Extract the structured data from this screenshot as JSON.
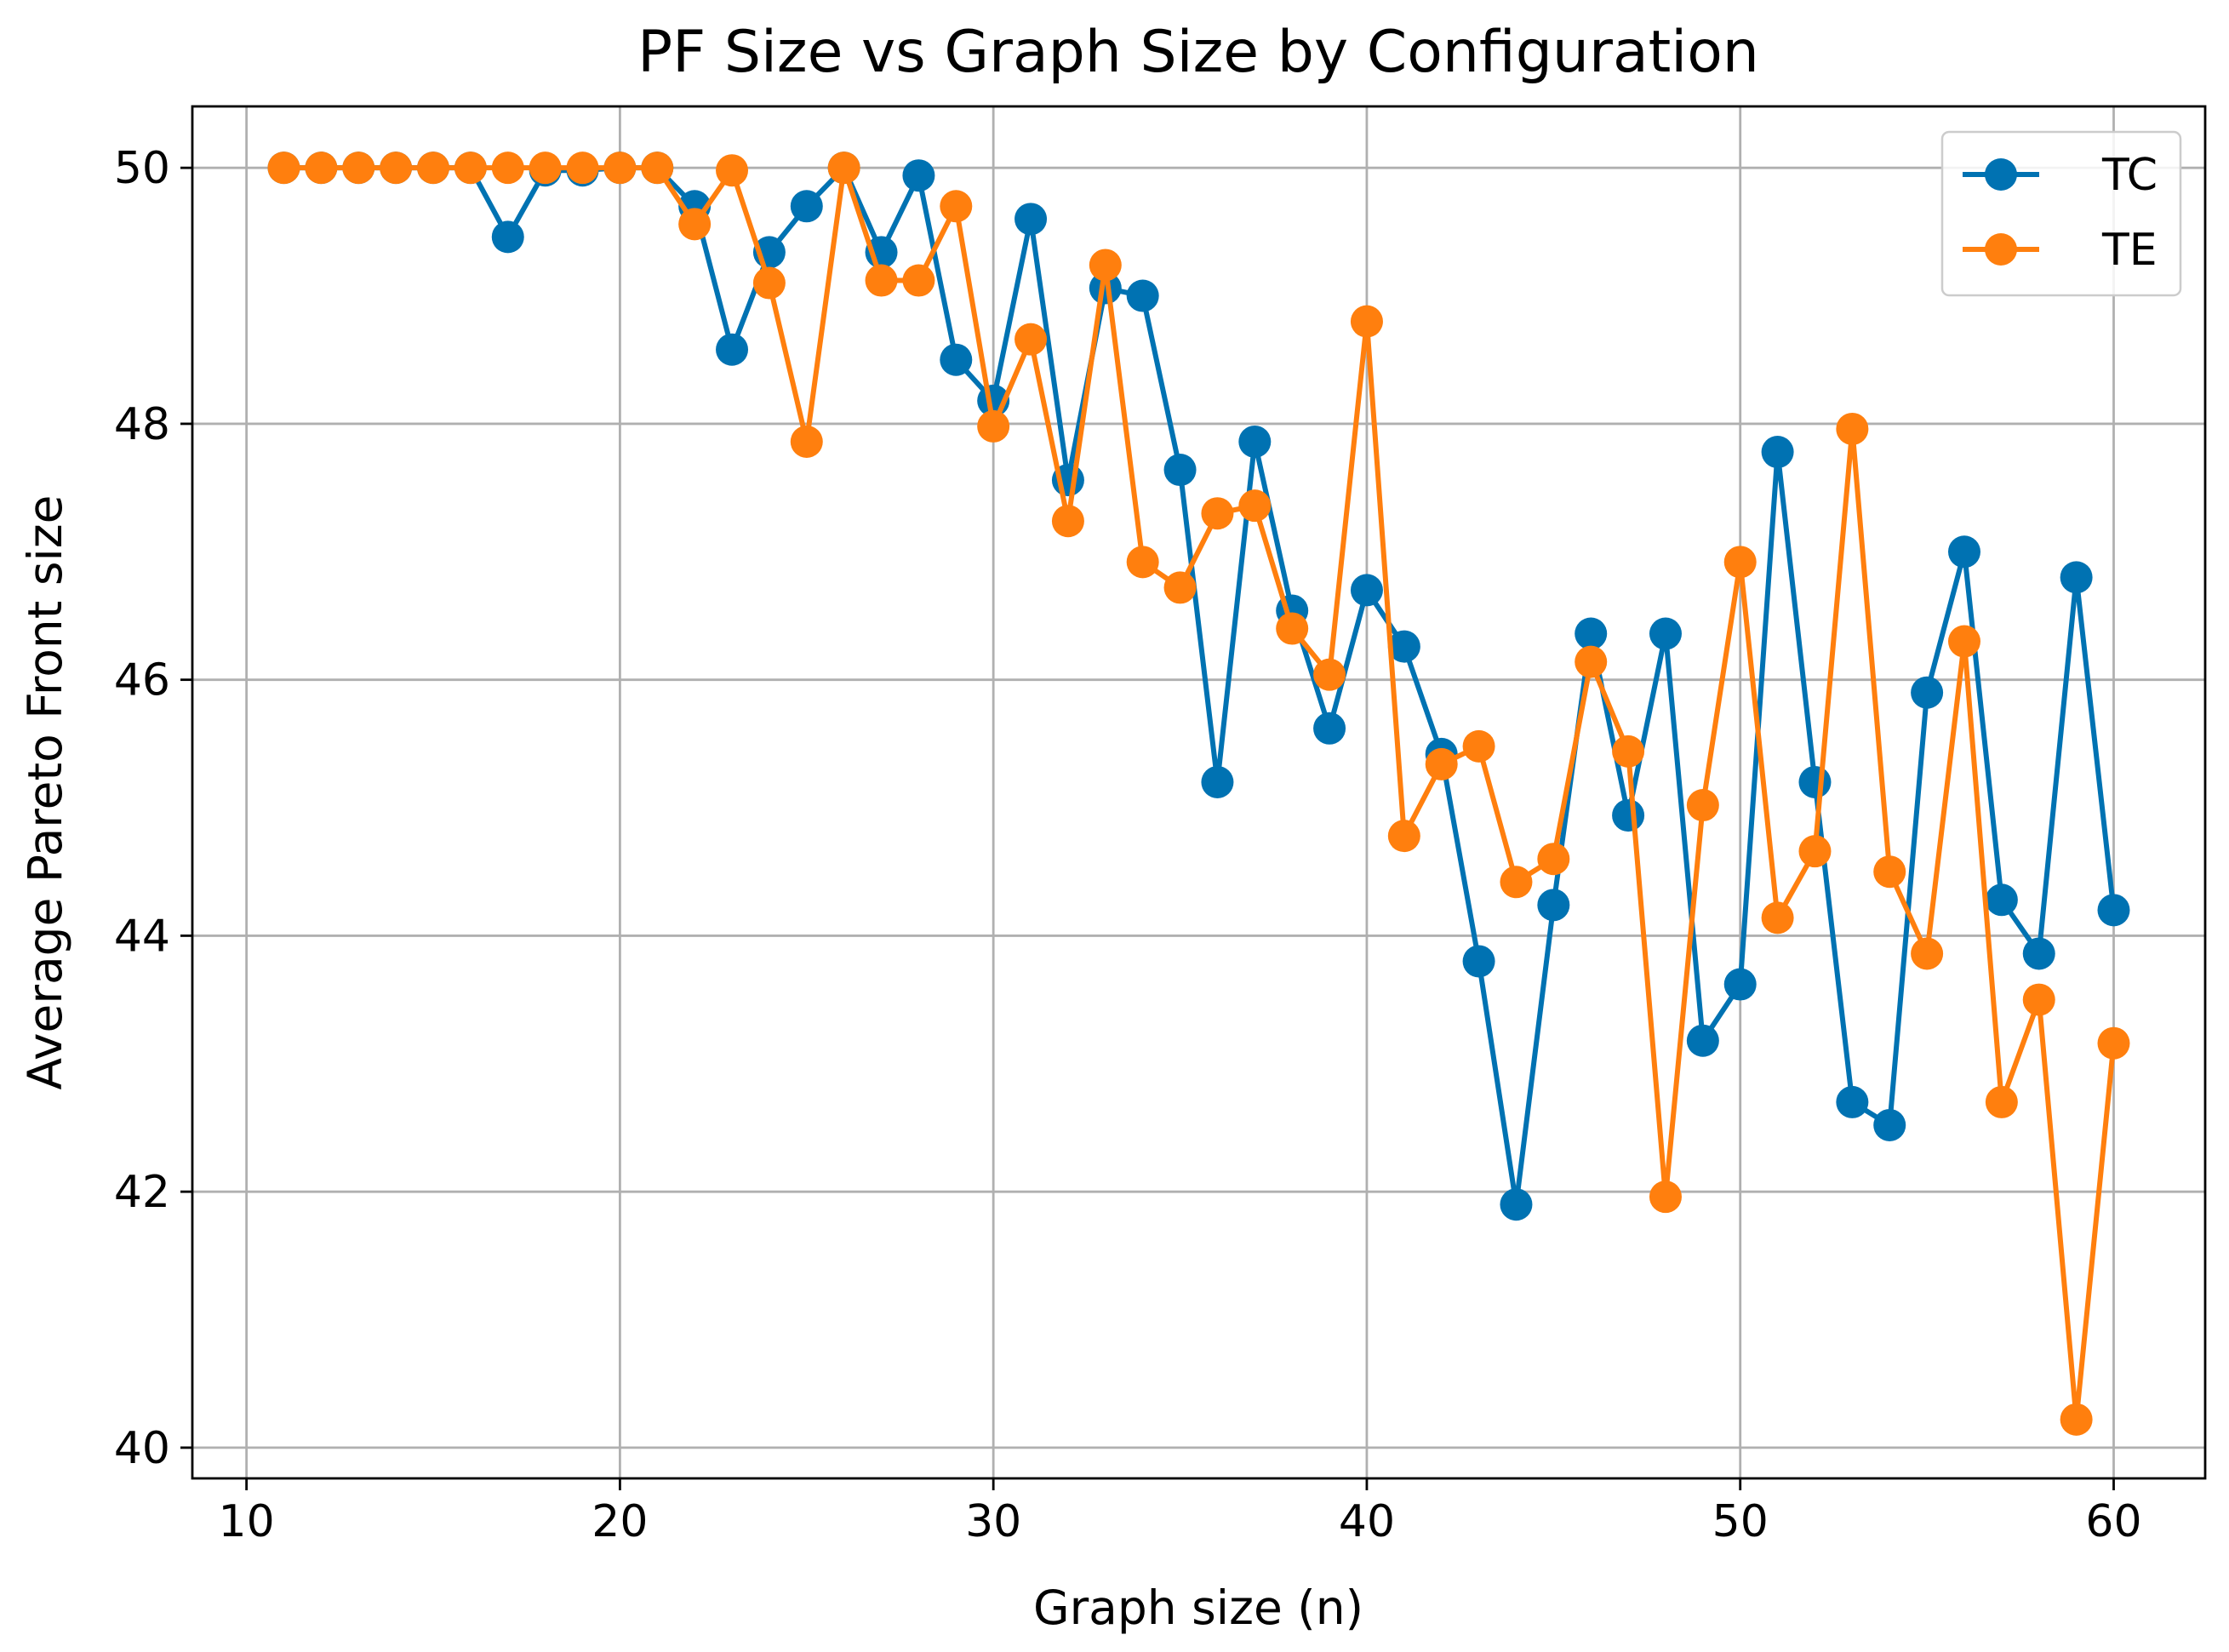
{
  "chart_data": {
    "type": "line",
    "title": "PF Size vs Graph Size by Configuration",
    "xlabel": "Graph size (n)",
    "ylabel": "Average Pareto Front size",
    "xlim": [
      8.55,
      62.45
    ],
    "ylim": [
      39.76,
      50.48
    ],
    "xticks": [
      10,
      20,
      30,
      40,
      50,
      60
    ],
    "yticks": [
      40,
      42,
      44,
      46,
      48,
      50
    ],
    "grid": true,
    "legend_position": "top-right",
    "x": [
      11,
      12,
      13,
      14,
      15,
      16,
      17,
      18,
      19,
      20,
      21,
      22,
      23,
      24,
      25,
      26,
      27,
      28,
      29,
      30,
      31,
      32,
      33,
      34,
      35,
      36,
      37,
      38,
      39,
      40,
      41,
      42,
      43,
      44,
      45,
      46,
      47,
      48,
      49,
      50,
      51,
      52,
      53,
      54,
      55,
      56,
      57,
      58,
      59,
      60
    ],
    "series": [
      {
        "name": "TC",
        "color": "#0072b2",
        "values": [
          50.0,
          50.0,
          50.0,
          50.0,
          50.0,
          50.0,
          49.46,
          49.98,
          49.98,
          50.0,
          50.0,
          49.7,
          48.58,
          49.34,
          49.7,
          50.0,
          49.34,
          49.94,
          48.5,
          48.18,
          49.6,
          47.56,
          49.06,
          49.0,
          47.64,
          45.2,
          47.86,
          46.54,
          45.62,
          46.7,
          46.26,
          45.42,
          43.8,
          41.9,
          44.24,
          46.36,
          44.94,
          46.36,
          43.18,
          43.62,
          47.78,
          45.2,
          42.7,
          42.52,
          45.9,
          47.0,
          44.28,
          43.86,
          46.8,
          44.2
        ]
      },
      {
        "name": "TE",
        "color": "#ff7f0e",
        "values": [
          50.0,
          50.0,
          50.0,
          50.0,
          50.0,
          50.0,
          50.0,
          50.0,
          50.0,
          50.0,
          50.0,
          49.56,
          49.98,
          49.1,
          47.86,
          50.0,
          49.12,
          49.12,
          49.7,
          47.98,
          48.66,
          47.24,
          49.24,
          46.92,
          46.72,
          47.3,
          47.36,
          46.4,
          46.04,
          48.8,
          44.78,
          45.34,
          45.48,
          44.42,
          44.6,
          46.14,
          45.44,
          41.96,
          45.02,
          46.92,
          44.14,
          44.66,
          47.96,
          44.5,
          43.86,
          46.3,
          42.7,
          43.5,
          40.22,
          43.16
        ]
      }
    ]
  }
}
